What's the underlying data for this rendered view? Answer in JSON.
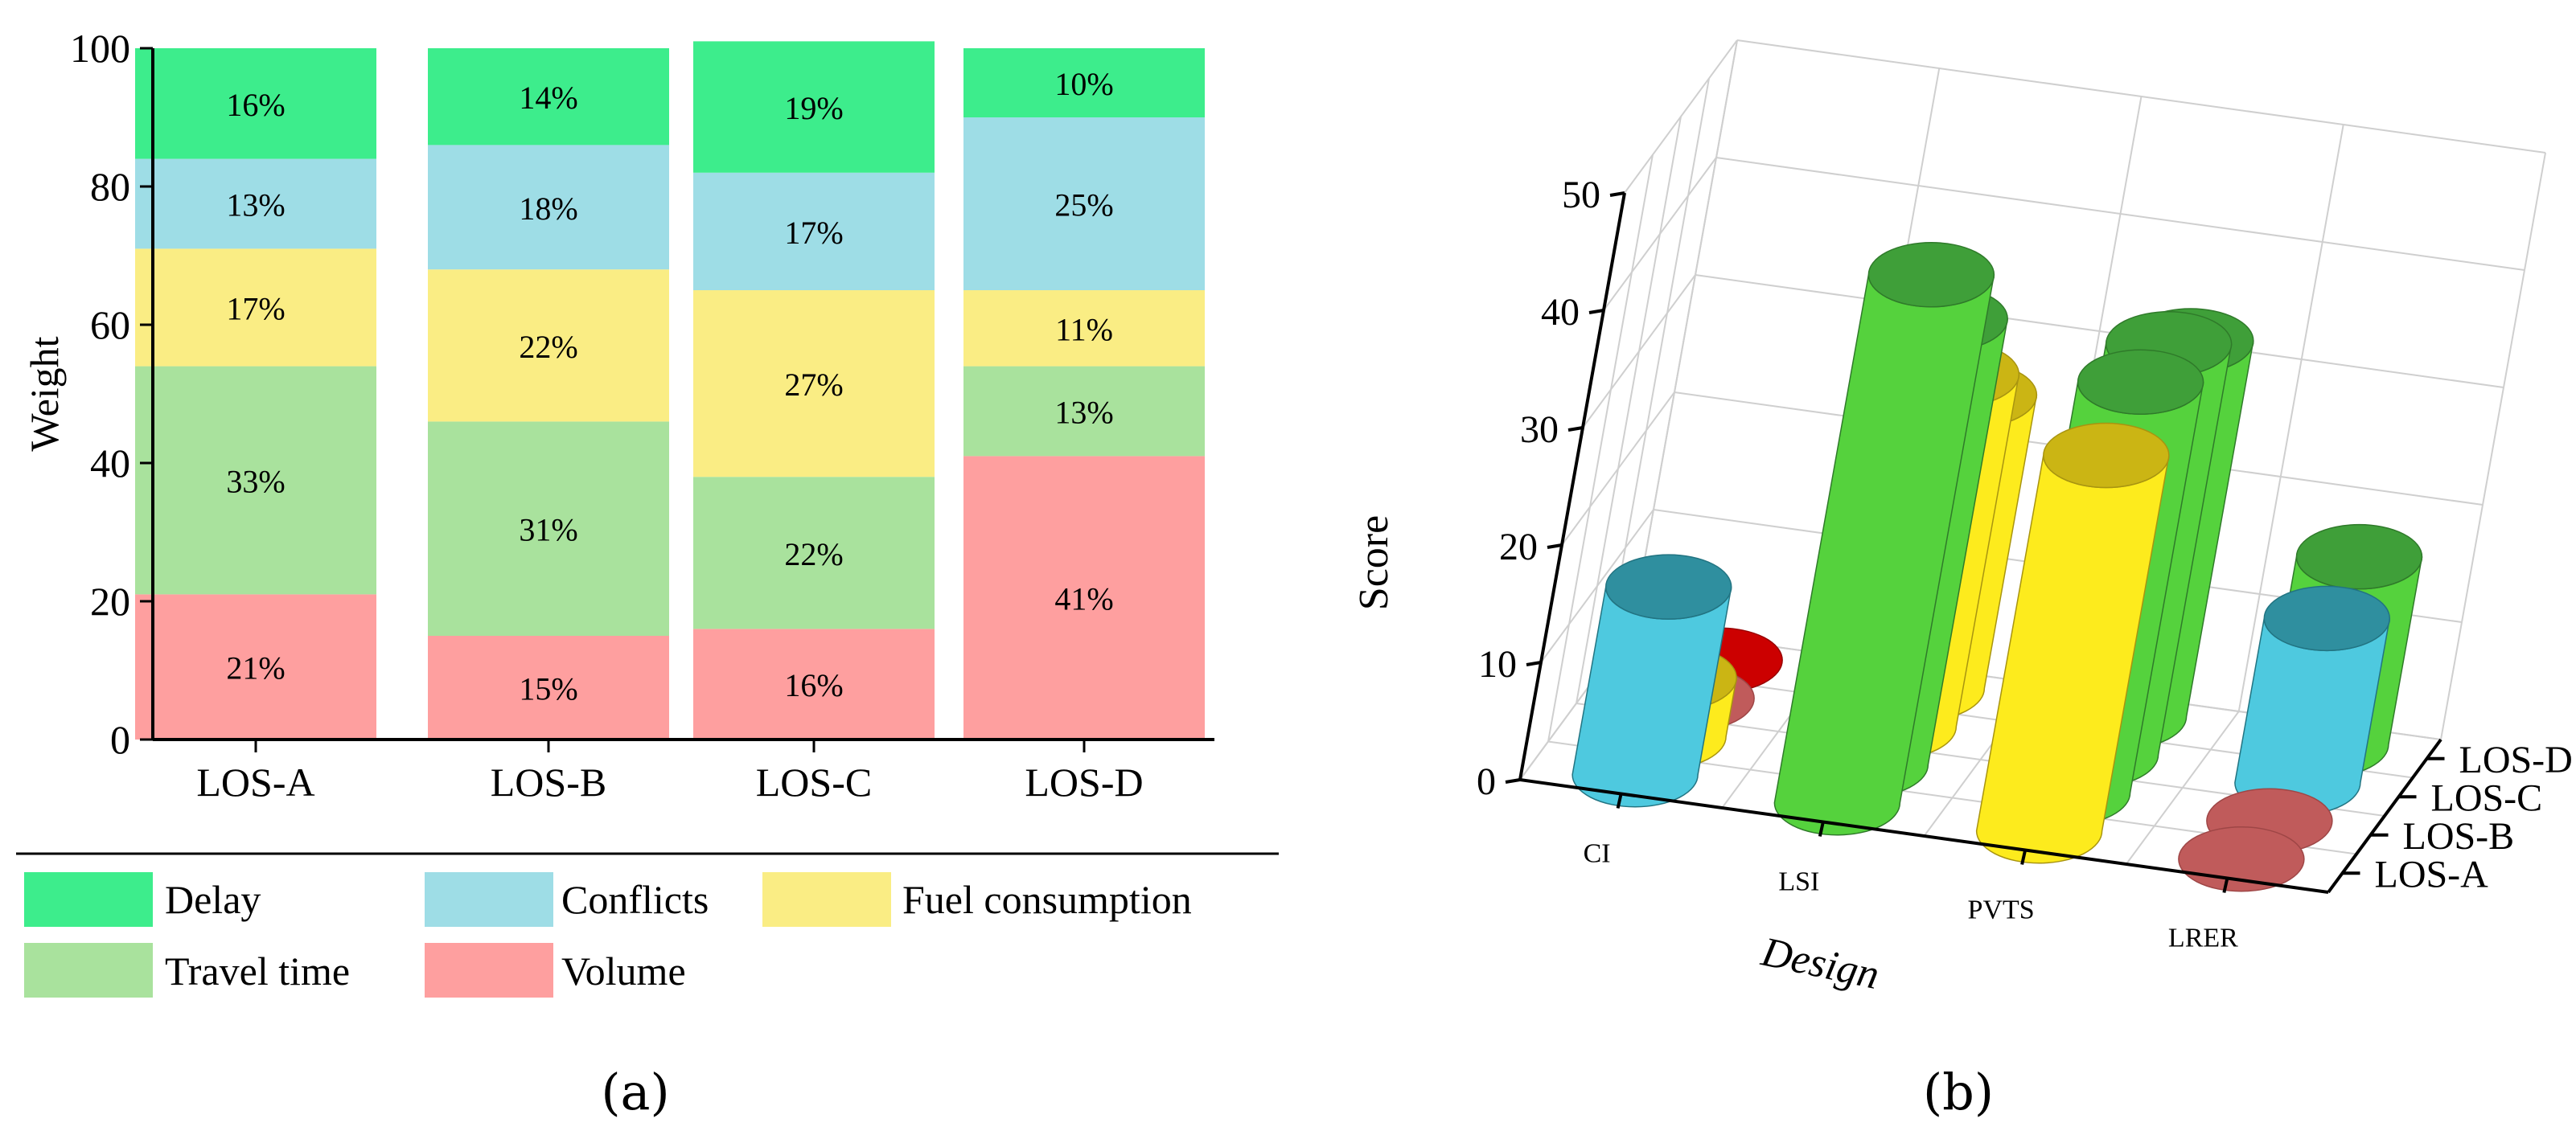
{
  "panel_labels": {
    "a": "(a)",
    "b": "(b)"
  },
  "colors": {
    "Delay": "#3ded8c",
    "Conflicts": "#9edde6",
    "Fuel consumption": "#faed84",
    "Travel time": "#a9e29d",
    "Volume": "#fe9f9f"
  },
  "chart_data": [
    {
      "type": "bar",
      "stacked": true,
      "ylabel": "Weight",
      "xlabel": "",
      "ylim": [
        0,
        100
      ],
      "yticks": [
        "0",
        "20",
        "40",
        "60",
        "80",
        "100"
      ],
      "categories": [
        "LOS-A",
        "LOS-B",
        "LOS-C",
        "LOS-D"
      ],
      "series": [
        {
          "name": "Volume",
          "values": [
            21,
            15,
            16,
            41
          ],
          "labels": [
            "21%",
            "15%",
            "16%",
            "41%"
          ]
        },
        {
          "name": "Travel time",
          "values": [
            33,
            31,
            22,
            13
          ],
          "labels": [
            "33%",
            "31%",
            "22%",
            "13%"
          ]
        },
        {
          "name": "Fuel consumption",
          "values": [
            17,
            22,
            27,
            11
          ],
          "labels": [
            "17%",
            "22%",
            "27%",
            "11%"
          ]
        },
        {
          "name": "Conflicts",
          "values": [
            13,
            18,
            17,
            25
          ],
          "labels": [
            "13%",
            "18%",
            "17%",
            "25%"
          ]
        },
        {
          "name": "Delay",
          "values": [
            16,
            14,
            19,
            10
          ],
          "labels": [
            "16%",
            "14%",
            "19%",
            "10%"
          ]
        }
      ],
      "legend": {
        "placement": "bottom",
        "entries": [
          "Delay",
          "Conflicts",
          "Fuel consumption",
          "Travel time",
          "Volume"
        ]
      }
    },
    {
      "type": "bar3d",
      "xlabel": "Design",
      "ylabel": "",
      "zlabel": "Score",
      "zlim": [
        0,
        50
      ],
      "zticks": [
        "0",
        "10",
        "20",
        "30",
        "40",
        "50"
      ],
      "x_categories": [
        "CI",
        "LSI",
        "PVTS",
        "LRER"
      ],
      "y_categories": [
        "LOS-A",
        "LOS-B",
        "LOS-C",
        "LOS-D"
      ],
      "bars": [
        {
          "x": "CI",
          "y": "LOS-D",
          "value": 0,
          "color": "red"
        },
        {
          "x": "CI",
          "y": "LOS-C",
          "value": 0,
          "color": "brown"
        },
        {
          "x": "CI",
          "y": "LOS-B",
          "value": 5,
          "color": "yellow"
        },
        {
          "x": "CI",
          "y": "LOS-A",
          "value": 16,
          "color": "cyan"
        },
        {
          "x": "LSI",
          "y": "LOS-D",
          "value": 25,
          "color": "yellow"
        },
        {
          "x": "LSI",
          "y": "LOS-C",
          "value": 30,
          "color": "yellow"
        },
        {
          "x": "LSI",
          "y": "LOS-B",
          "value": 38,
          "color": "green"
        },
        {
          "x": "LSI",
          "y": "LOS-A",
          "value": 45,
          "color": "green"
        },
        {
          "x": "PVTS",
          "y": "LOS-D",
          "value": 32,
          "color": "green"
        },
        {
          "x": "PVTS",
          "y": "LOS-C",
          "value": 35,
          "color": "green"
        },
        {
          "x": "PVTS",
          "y": "LOS-B",
          "value": 35,
          "color": "green"
        },
        {
          "x": "PVTS",
          "y": "LOS-A",
          "value": 32,
          "color": "yellow"
        },
        {
          "x": "LRER",
          "y": "LOS-D",
          "value": 16,
          "color": "green"
        },
        {
          "x": "LRER",
          "y": "LOS-C",
          "value": 14,
          "color": "cyan"
        },
        {
          "x": "LRER",
          "y": "LOS-B",
          "value": 0,
          "color": "brown"
        },
        {
          "x": "LRER",
          "y": "LOS-A",
          "value": 0,
          "color": "brown"
        }
      ]
    }
  ]
}
